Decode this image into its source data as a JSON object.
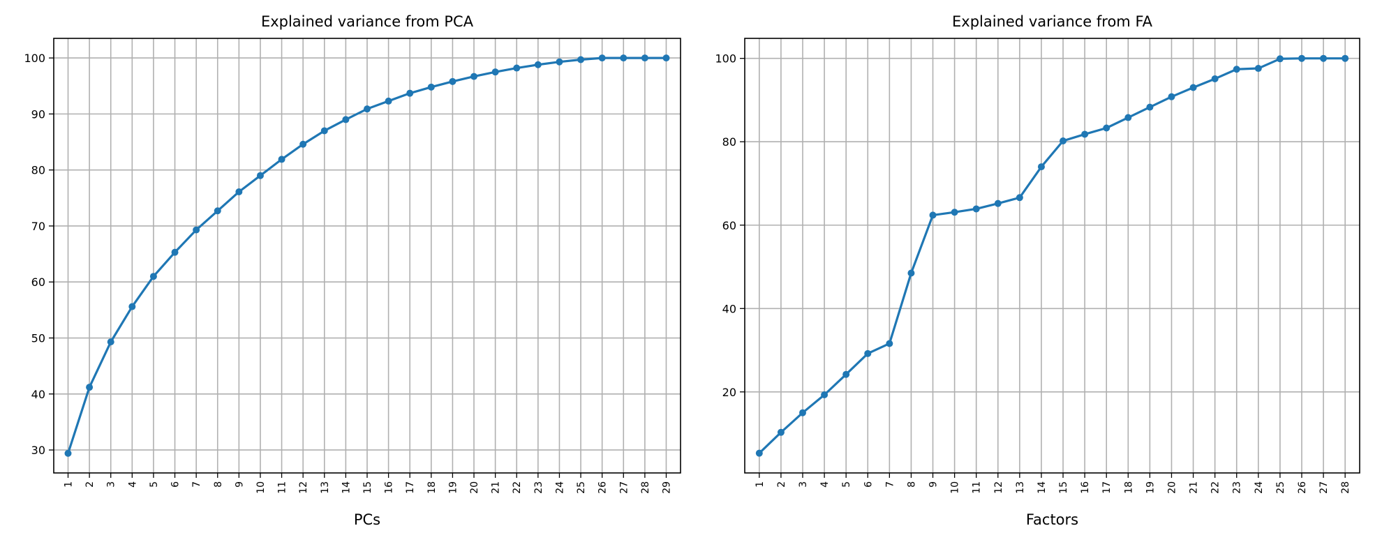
{
  "chart_data": [
    {
      "type": "line",
      "title": "Explained variance from PCA",
      "xlabel": "PCs",
      "ylabel": "",
      "x": [
        1,
        2,
        3,
        4,
        5,
        6,
        7,
        8,
        9,
        10,
        11,
        12,
        13,
        14,
        15,
        16,
        17,
        18,
        19,
        20,
        21,
        22,
        23,
        24,
        25,
        26,
        27,
        28,
        29
      ],
      "categories": [
        "1",
        "2",
        "3",
        "4",
        "5",
        "6",
        "7",
        "8",
        "9",
        "10",
        "11",
        "12",
        "13",
        "14",
        "15",
        "16",
        "17",
        "18",
        "19",
        "20",
        "21",
        "22",
        "23",
        "24",
        "25",
        "26",
        "27",
        "28",
        "29"
      ],
      "series": [
        {
          "values": [
            29.4,
            41.2,
            49.3,
            55.6,
            61.0,
            65.3,
            69.3,
            72.7,
            76.1,
            79.0,
            81.9,
            84.6,
            87.0,
            89.0,
            90.9,
            92.3,
            93.7,
            94.8,
            95.8,
            96.7,
            97.5,
            98.2,
            98.8,
            99.3,
            99.7,
            100.0,
            100.0,
            100.0,
            100.0
          ],
          "color": "#1f77b4"
        }
      ],
      "ylim": [
        25.9,
        103.5
      ],
      "yticks": [
        30,
        40,
        50,
        60,
        70,
        80,
        90,
        100
      ],
      "grid": true
    },
    {
      "type": "line",
      "title": "Explained variance from FA",
      "xlabel": "Factors",
      "ylabel": "",
      "x": [
        1,
        2,
        3,
        4,
        5,
        6,
        7,
        8,
        9,
        10,
        11,
        12,
        13,
        14,
        15,
        16,
        17,
        18,
        19,
        20,
        21,
        22,
        23,
        24,
        25,
        26,
        27,
        28
      ],
      "categories": [
        "1",
        "2",
        "3",
        "4",
        "5",
        "6",
        "7",
        "8",
        "9",
        "10",
        "11",
        "12",
        "13",
        "14",
        "15",
        "16",
        "17",
        "18",
        "19",
        "20",
        "21",
        "22",
        "23",
        "24",
        "25",
        "26",
        "27",
        "28"
      ],
      "series": [
        {
          "values": [
            5.3,
            10.3,
            15.0,
            19.3,
            24.2,
            29.2,
            31.6,
            48.5,
            62.4,
            63.1,
            63.9,
            65.2,
            66.6,
            74.0,
            80.2,
            81.8,
            83.3,
            85.8,
            88.3,
            90.8,
            93.0,
            95.1,
            97.4,
            97.6,
            99.9,
            100.0,
            100.0,
            100.0
          ],
          "color": "#1f77b4"
        }
      ],
      "ylim": [
        0.56,
        104.8
      ],
      "yticks": [
        20,
        40,
        60,
        80,
        100
      ],
      "grid": true
    }
  ]
}
